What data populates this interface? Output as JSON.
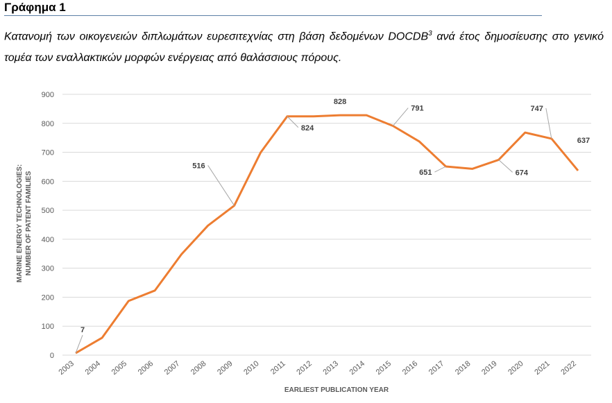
{
  "heading": "Γράφημα 1",
  "caption_before_sup": "Κατανομή των οικογενειών διπλωμάτων ευρεσιτεχνίας στη βάση δεδομένων DOCDB",
  "caption_sup": "3",
  "caption_after_sup": " ανά έτος δημοσίευσης στο γενικό τομέα των εναλλακτικών μορφών ενέργειας από θαλάσσιους πόρους.",
  "colors": {
    "line": "#ED7D31",
    "grid": "#D9D9D9",
    "text": "#595959"
  },
  "chart_data": {
    "type": "line",
    "xlabel": "EARLIEST PUBLICATION YEAR",
    "ylabel_line1": "MARINE ENERGY TECHNOLOGIES:",
    "ylabel_line2": "NUMBER OF  PATENT FAMILIES",
    "ylim": [
      0,
      900
    ],
    "yticks": [
      "0",
      "100",
      "200",
      "300",
      "400",
      "500",
      "600",
      "700",
      "800",
      "900"
    ],
    "categories": [
      "2003",
      "2004",
      "2005",
      "2006",
      "2007",
      "2008",
      "2009",
      "2010",
      "2011",
      "2012",
      "2013",
      "2014",
      "2015",
      "2016",
      "2017",
      "2018",
      "2019",
      "2020",
      "2021",
      "2022"
    ],
    "series": [
      {
        "values": [
          7,
          60,
          187,
          223,
          348,
          447,
          516,
          700,
          824,
          824,
          828,
          828,
          791,
          737,
          651,
          643,
          674,
          768,
          747,
          637
        ]
      }
    ],
    "data_labels": [
      {
        "index": 0,
        "text": "7"
      },
      {
        "index": 6,
        "text": "516"
      },
      {
        "index": 8,
        "text": "824"
      },
      {
        "index": 10,
        "text": "828"
      },
      {
        "index": 12,
        "text": "791"
      },
      {
        "index": 14,
        "text": "651"
      },
      {
        "index": 16,
        "text": "674"
      },
      {
        "index": 18,
        "text": "747"
      },
      {
        "index": 19,
        "text": "637"
      }
    ],
    "grid": true,
    "legend": false
  }
}
